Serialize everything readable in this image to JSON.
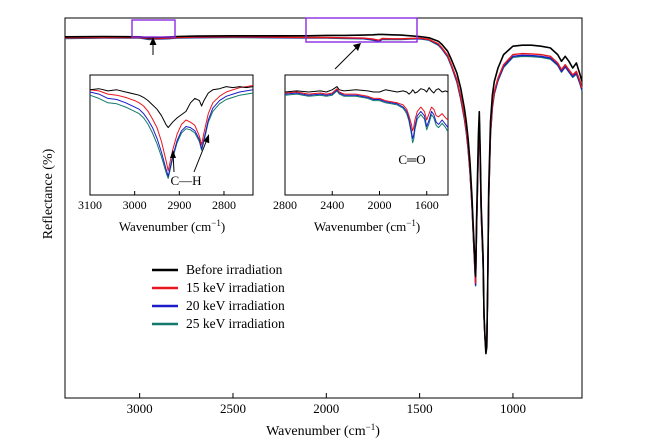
{
  "chart_data": {
    "type": "line",
    "xlabel": "Wavenumber (cm−1)",
    "ylabel": "Reflectance (%)",
    "xlim": [
      3400,
      630
    ],
    "ylim": [
      0,
      100
    ],
    "x_ticks": [
      3000,
      2500,
      2000,
      1500,
      1000
    ],
    "legend": {
      "placement": "lower-left"
    },
    "series": [
      {
        "name": "Before irradiation",
        "color": "#000000"
      },
      {
        "name": "15 keV irradiation",
        "color": "#e8171e"
      },
      {
        "name": "20 keV irradiation",
        "color": "#1c1cc8"
      },
      {
        "name": "25 keV irradiation",
        "color": "#117a6c"
      }
    ],
    "main_curve": {
      "x": [
        3400,
        3200,
        3000,
        2950,
        2925,
        2900,
        2850,
        2800,
        2700,
        2500,
        2300,
        2100,
        2000,
        1900,
        1800,
        1750,
        1720,
        1700,
        1650,
        1600,
        1550,
        1500,
        1450,
        1400,
        1380,
        1350,
        1330,
        1300,
        1280,
        1260,
        1250,
        1240,
        1230,
        1220,
        1210,
        1200,
        1195,
        1185,
        1180,
        1175,
        1170,
        1165,
        1160,
        1155,
        1150,
        1145,
        1140,
        1135,
        1130,
        1120,
        1110,
        1100,
        1080,
        1050,
        1000,
        950,
        900,
        850,
        800,
        760,
        740,
        720,
        700,
        680,
        660,
        640,
        630
      ],
      "values": {
        "before": [
          95.3,
          95.4,
          95.3,
          95.0,
          95.1,
          95.1,
          95.2,
          95.4,
          95.5,
          95.6,
          95.6,
          95.6,
          95.7,
          95.7,
          95.8,
          95.9,
          96.0,
          96.0,
          95.9,
          95.8,
          95.6,
          95.4,
          95.0,
          94.0,
          93.0,
          91.0,
          88.5,
          84.5,
          80.0,
          74.0,
          70.0,
          65.0,
          58.0,
          48.0,
          36.0,
          24.0,
          40.0,
          66.0,
          73.0,
          60.0,
          45.0,
          38.0,
          30.0,
          13.0,
          6.5,
          1.0,
          3.0,
          22.0,
          50.0,
          70.0,
          78.0,
          82.0,
          86.0,
          90.0,
          92.5,
          92.8,
          92.8,
          92.5,
          92.0,
          90.0,
          88.0,
          89.5,
          88.0,
          86.0,
          87.5,
          84.0,
          82.0
        ],
        "k15": [
          95.0,
          95.1,
          95.1,
          94.8,
          94.8,
          94.8,
          94.9,
          95.1,
          95.2,
          95.3,
          95.2,
          95.1,
          95.1,
          95.0,
          94.9,
          94.6,
          94.3,
          94.8,
          94.7,
          94.7,
          94.8,
          94.9,
          94.5,
          93.2,
          92.0,
          89.8,
          87.0,
          82.5,
          77.5,
          71.5,
          67.5,
          62.5,
          55.5,
          46.0,
          34.0,
          22.0,
          37.0,
          63.0,
          71.0,
          58.0,
          43.0,
          36.0,
          28.0,
          12.0,
          6.0,
          1.5,
          3.5,
          20.5,
          47.0,
          67.0,
          75.0,
          79.0,
          83.0,
          87.0,
          90.0,
          90.3,
          90.2,
          90.0,
          89.5,
          87.5,
          85.5,
          87.0,
          85.5,
          84.0,
          85.0,
          82.0,
          80.0
        ],
        "k20": [
          94.9,
          95.0,
          95.0,
          94.6,
          94.7,
          94.7,
          94.8,
          95.0,
          95.1,
          95.2,
          95.1,
          95.0,
          95.0,
          94.9,
          94.8,
          94.4,
          94.0,
          94.6,
          94.6,
          94.6,
          94.7,
          94.8,
          94.4,
          93.0,
          91.8,
          89.5,
          86.7,
          82.0,
          77.0,
          71.0,
          67.0,
          62.0,
          55.0,
          45.5,
          33.5,
          21.5,
          36.5,
          62.5,
          70.5,
          57.5,
          42.5,
          35.5,
          27.5,
          12.0,
          6.0,
          2.0,
          4.0,
          20.0,
          46.5,
          66.5,
          74.5,
          78.5,
          82.5,
          86.5,
          89.5,
          89.8,
          89.7,
          89.5,
          89.0,
          87.0,
          85.0,
          86.5,
          85.0,
          83.5,
          84.5,
          81.5,
          79.5
        ],
        "k25": [
          94.8,
          94.9,
          94.9,
          94.5,
          94.6,
          94.6,
          94.7,
          94.9,
          95.0,
          95.1,
          95.0,
          94.9,
          94.9,
          94.8,
          94.7,
          94.3,
          93.9,
          94.5,
          94.5,
          94.5,
          94.6,
          94.7,
          94.3,
          92.8,
          91.6,
          89.3,
          86.5,
          81.8,
          76.8,
          70.8,
          66.8,
          61.8,
          54.8,
          45.2,
          33.2,
          21.2,
          36.2,
          62.2,
          70.2,
          57.2,
          42.2,
          35.2,
          27.2,
          12.0,
          6.2,
          2.5,
          4.5,
          20.0,
          46.2,
          66.2,
          74.2,
          78.2,
          82.2,
          86.2,
          89.2,
          89.5,
          89.4,
          89.2,
          88.7,
          86.8,
          84.8,
          86.3,
          84.8,
          83.2,
          84.2,
          81.2,
          79.2
        ]
      }
    },
    "insets": [
      {
        "id": "ch",
        "x_ticks": [
          3100,
          3000,
          2900,
          2800
        ],
        "xlabel": "Wavenumber (cm−1)",
        "xlim": [
          3100,
          2735
        ],
        "annotation": "C—H",
        "x": [
          3100,
          3080,
          3060,
          3040,
          3020,
          3000,
          2990,
          2980,
          2970,
          2960,
          2950,
          2940,
          2930,
          2925,
          2915,
          2905,
          2895,
          2885,
          2875,
          2865,
          2855,
          2850,
          2845,
          2835,
          2825,
          2810,
          2795,
          2780,
          2765,
          2750,
          2735
        ],
        "values": {
          "before": [
            0.9,
            0.91,
            0.89,
            0.9,
            0.88,
            0.86,
            0.85,
            0.83,
            0.8,
            0.76,
            0.72,
            0.66,
            0.58,
            0.55,
            0.6,
            0.64,
            0.67,
            0.7,
            0.78,
            0.82,
            0.8,
            0.75,
            0.8,
            0.87,
            0.9,
            0.91,
            0.93,
            0.92,
            0.93,
            0.92,
            0.93
          ],
          "k15": [
            0.9,
            0.89,
            0.86,
            0.85,
            0.83,
            0.8,
            0.78,
            0.75,
            0.7,
            0.63,
            0.55,
            0.42,
            0.25,
            0.15,
            0.34,
            0.49,
            0.58,
            0.62,
            0.6,
            0.57,
            0.47,
            0.39,
            0.5,
            0.68,
            0.78,
            0.84,
            0.88,
            0.9,
            0.92,
            0.93,
            0.94
          ],
          "k20": [
            0.88,
            0.86,
            0.82,
            0.81,
            0.78,
            0.74,
            0.72,
            0.68,
            0.62,
            0.55,
            0.45,
            0.32,
            0.17,
            0.1,
            0.28,
            0.43,
            0.52,
            0.56,
            0.55,
            0.52,
            0.44,
            0.35,
            0.44,
            0.62,
            0.73,
            0.8,
            0.84,
            0.86,
            0.88,
            0.89,
            0.9
          ],
          "k25": [
            0.85,
            0.82,
            0.78,
            0.77,
            0.74,
            0.7,
            0.68,
            0.64,
            0.58,
            0.5,
            0.4,
            0.28,
            0.14,
            0.08,
            0.26,
            0.41,
            0.5,
            0.54,
            0.53,
            0.5,
            0.42,
            0.34,
            0.42,
            0.6,
            0.7,
            0.77,
            0.81,
            0.83,
            0.85,
            0.86,
            0.87
          ]
        }
      },
      {
        "id": "co",
        "x_ticks": [
          2800,
          2400,
          2000,
          1600
        ],
        "xlabel": "Wavenumber (cm−1)",
        "xlim": [
          2800,
          1420
        ],
        "annotation": "C═O",
        "x": [
          2800,
          2700,
          2600,
          2500,
          2450,
          2400,
          2360,
          2340,
          2300,
          2200,
          2100,
          2050,
          2000,
          1950,
          1900,
          1850,
          1800,
          1770,
          1750,
          1730,
          1720,
          1710,
          1700,
          1680,
          1650,
          1620,
          1600,
          1580,
          1560,
          1540,
          1520,
          1500,
          1470,
          1440,
          1420
        ],
        "values": {
          "before": [
            0.88,
            0.89,
            0.88,
            0.89,
            0.88,
            0.9,
            0.93,
            0.9,
            0.89,
            0.9,
            0.89,
            0.88,
            0.88,
            0.9,
            0.89,
            0.88,
            0.89,
            0.88,
            0.86,
            0.88,
            0.9,
            0.89,
            0.87,
            0.88,
            0.91,
            0.9,
            0.88,
            0.92,
            0.89,
            0.87,
            0.9,
            0.91,
            0.88,
            0.89,
            0.88
          ],
          "k15": [
            0.87,
            0.88,
            0.86,
            0.87,
            0.86,
            0.87,
            0.91,
            0.88,
            0.86,
            0.86,
            0.84,
            0.82,
            0.82,
            0.8,
            0.79,
            0.78,
            0.76,
            0.72,
            0.66,
            0.58,
            0.52,
            0.55,
            0.62,
            0.7,
            0.74,
            0.7,
            0.62,
            0.68,
            0.74,
            0.72,
            0.66,
            0.65,
            0.68,
            0.64,
            0.62
          ],
          "k20": [
            0.86,
            0.87,
            0.85,
            0.86,
            0.85,
            0.86,
            0.9,
            0.87,
            0.85,
            0.85,
            0.83,
            0.81,
            0.81,
            0.79,
            0.78,
            0.77,
            0.74,
            0.7,
            0.63,
            0.52,
            0.45,
            0.48,
            0.56,
            0.66,
            0.7,
            0.66,
            0.56,
            0.62,
            0.7,
            0.67,
            0.6,
            0.58,
            0.62,
            0.58,
            0.55
          ],
          "k25": [
            0.85,
            0.86,
            0.84,
            0.85,
            0.84,
            0.85,
            0.89,
            0.86,
            0.84,
            0.84,
            0.82,
            0.8,
            0.8,
            0.78,
            0.77,
            0.76,
            0.73,
            0.68,
            0.61,
            0.49,
            0.41,
            0.44,
            0.53,
            0.63,
            0.67,
            0.63,
            0.53,
            0.59,
            0.67,
            0.64,
            0.57,
            0.55,
            0.59,
            0.55,
            0.51
          ]
        }
      }
    ]
  }
}
